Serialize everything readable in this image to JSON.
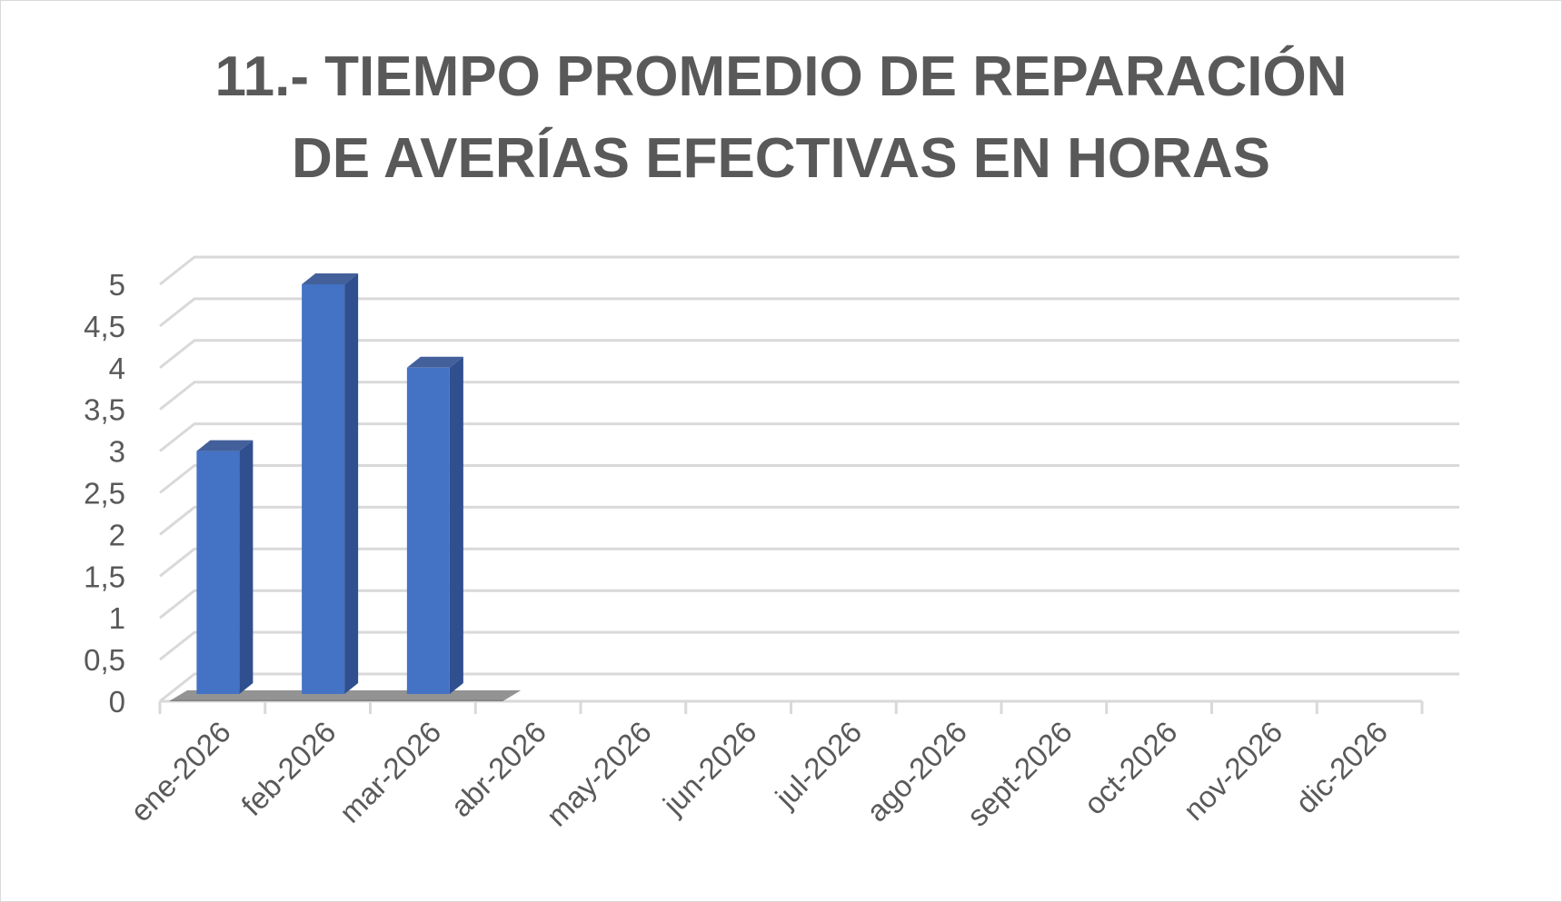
{
  "chart_data": {
    "type": "bar",
    "title_lines": [
      "11.- TIEMPO PROMEDIO DE REPARACIÓN",
      "DE AVERÍAS EFECTIVAS EN HORAS"
    ],
    "categories": [
      "ene-2026",
      "feb-2026",
      "mar-2026",
      "abr-2026",
      "may-2026",
      "jun-2026",
      "jul-2026",
      "ago-2026",
      "sept-2026",
      "oct-2026",
      "nov-2026",
      "dic-2026"
    ],
    "values": [
      3,
      5,
      4,
      null,
      null,
      null,
      null,
      null,
      null,
      null,
      null,
      null
    ],
    "ylim": [
      0,
      5
    ],
    "yticks": [
      "0",
      "0,5",
      "1",
      "1,5",
      "2",
      "2,5",
      "3",
      "3,5",
      "4",
      "4,5",
      "5"
    ],
    "grid": true,
    "style": "3d-column",
    "colors": {
      "bar_front": "#4472c4",
      "bar_side": "#2f4f8f",
      "bar_top": "#5b7fc4",
      "grid": "#d9d9d9",
      "text": "#595959"
    }
  }
}
